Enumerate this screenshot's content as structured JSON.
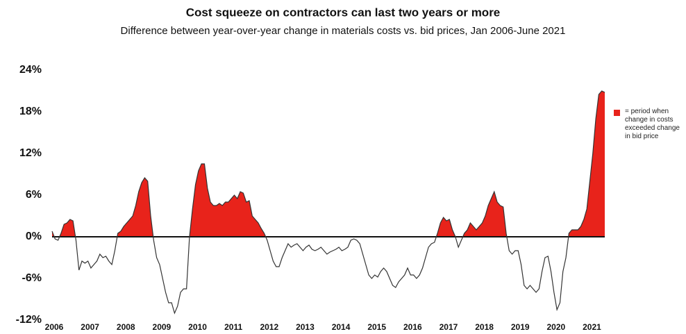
{
  "chart_data": {
    "type": "line",
    "title": "Cost squeeze on contractors can last two years or more",
    "subtitle": "Difference between year-over-year change in materials costs vs. bid prices, Jan 2006-June 2021",
    "categories": [
      "2006",
      null,
      null,
      null,
      null,
      null,
      null,
      null,
      null,
      null,
      null,
      null,
      "2007",
      null,
      null,
      null,
      null,
      null,
      null,
      null,
      null,
      null,
      null,
      null,
      "2008",
      null,
      null,
      null,
      null,
      null,
      null,
      null,
      null,
      null,
      null,
      null,
      "2009",
      null,
      null,
      null,
      null,
      null,
      null,
      null,
      null,
      null,
      null,
      null,
      "2010",
      null,
      null,
      null,
      null,
      null,
      null,
      null,
      null,
      null,
      null,
      null,
      "2011",
      null,
      null,
      null,
      null,
      null,
      null,
      null,
      null,
      null,
      null,
      null,
      "2012",
      null,
      null,
      null,
      null,
      null,
      null,
      null,
      null,
      null,
      null,
      null,
      "2013",
      null,
      null,
      null,
      null,
      null,
      null,
      null,
      null,
      null,
      null,
      null,
      "2014",
      null,
      null,
      null,
      null,
      null,
      null,
      null,
      null,
      null,
      null,
      null,
      "2015",
      null,
      null,
      null,
      null,
      null,
      null,
      null,
      null,
      null,
      null,
      null,
      "2016",
      null,
      null,
      null,
      null,
      null,
      null,
      null,
      null,
      null,
      null,
      null,
      "2017",
      null,
      null,
      null,
      null,
      null,
      null,
      null,
      null,
      null,
      null,
      null,
      "2018",
      null,
      null,
      null,
      null,
      null,
      null,
      null,
      null,
      null,
      null,
      null,
      "2019",
      null,
      null,
      null,
      null,
      null,
      null,
      null,
      null,
      null,
      null,
      null,
      "2020",
      null,
      null,
      null,
      null,
      null,
      null,
      null,
      null,
      null,
      null,
      null,
      "2021",
      null,
      null,
      null,
      null,
      null
    ],
    "series": [
      {
        "name": "= period when change in costs exceeded change in bid price",
        "color": "#e8231b",
        "line_color": "#333333",
        "values": [
          0.8,
          -0.3,
          -0.5,
          0.5,
          1.8,
          2.0,
          2.5,
          2.3,
          -0.5,
          -4.8,
          -3.5,
          -3.8,
          -3.5,
          -4.5,
          -4.0,
          -3.5,
          -2.5,
          -3.0,
          -2.8,
          -3.5,
          -4.0,
          -2.0,
          0.5,
          0.8,
          1.5,
          2.0,
          2.5,
          3.0,
          4.5,
          6.5,
          7.8,
          8.5,
          8.0,
          3.0,
          -0.5,
          -3.0,
          -4,
          -6,
          -8,
          -9.5,
          -9.5,
          -11,
          -10,
          -8,
          -7.5,
          -7.5,
          0,
          4,
          7.5,
          9.5,
          10.5,
          10.5,
          7,
          5,
          4.5,
          4.5,
          4.8,
          4.5,
          5,
          5,
          5.5,
          6,
          5.5,
          6.5,
          6.3,
          5,
          5.2,
          3,
          2.5,
          2,
          1.2,
          0.5,
          -0.5,
          -2,
          -3.5,
          -4.3,
          -4.3,
          -3,
          -2,
          -1,
          -1.5,
          -1.2,
          -1,
          -1.5,
          -2,
          -1.5,
          -1.2,
          -1.8,
          -2,
          -1.8,
          -1.5,
          -2,
          -2.5,
          -2.2,
          -2,
          -1.8,
          -1.5,
          -2,
          -1.8,
          -1.5,
          -0.5,
          -0.3,
          -0.5,
          -1,
          -2.5,
          -4,
          -5.5,
          -6,
          -5.5,
          -5.8,
          -5,
          -4.5,
          -5,
          -6,
          -7,
          -7.3,
          -6.5,
          -6,
          -5.5,
          -4.5,
          -5.5,
          -5.5,
          -6,
          -5.5,
          -4.5,
          -3,
          -1.5,
          -1,
          -0.8,
          0.5,
          2,
          2.8,
          2.3,
          2.5,
          1,
          0,
          -1.5,
          -0.5,
          0.5,
          1,
          2,
          1.5,
          1,
          1.5,
          2,
          3,
          4.5,
          5.5,
          6.5,
          5,
          4.5,
          4.3,
          0.5,
          -2,
          -2.5,
          -2,
          -2,
          -4,
          -7,
          -7.5,
          -7,
          -7.5,
          -8,
          -7.5,
          -5,
          -3,
          -2.8,
          -5,
          -8,
          -10.5,
          -9.5,
          -5,
          -3,
          0.5,
          1,
          1,
          1,
          1.5,
          2.5,
          4,
          8,
          12,
          17,
          20.5,
          21,
          20.8
        ]
      }
    ],
    "ylim": [
      -12,
      24
    ],
    "yticks": [
      {
        "value": -12,
        "label": "-12%"
      },
      {
        "value": -6,
        "label": "-6%"
      },
      {
        "value": 0,
        "label": "0%"
      },
      {
        "value": 6,
        "label": "6%"
      },
      {
        "value": 12,
        "label": "12%"
      },
      {
        "value": 18,
        "label": "18%"
      },
      {
        "value": 24,
        "label": "24%"
      }
    ],
    "grid": false
  }
}
